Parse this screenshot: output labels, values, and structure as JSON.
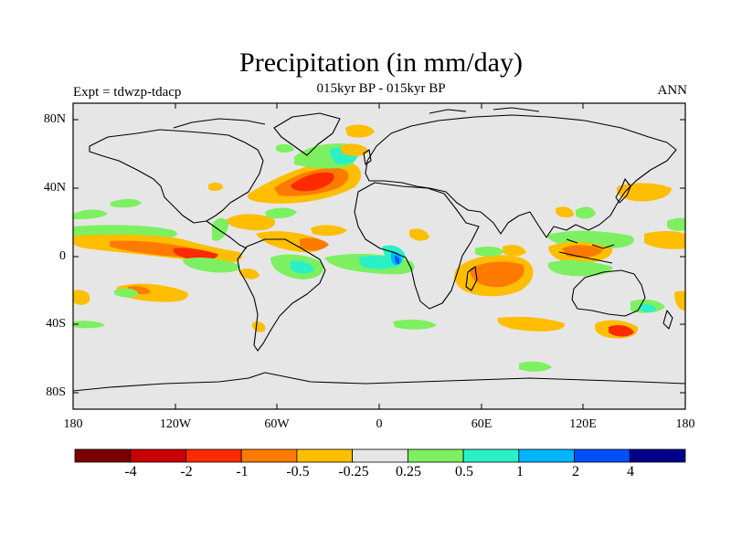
{
  "header": {
    "title": "Precipitation (in mm/day)",
    "subtitle": "015kyr BP - 015kyr BP",
    "experiment": "Expt = tdwzp-tdacp",
    "season": "ANN"
  },
  "map": {
    "projection": "cylindrical equidistant",
    "background_color": "#e6e6e6",
    "lat_ticks": [
      "80N",
      "40N",
      "0",
      "40S",
      "80S"
    ],
    "lon_ticks": [
      "180",
      "120W",
      "60W",
      "0",
      "60E",
      "120E",
      "180"
    ]
  },
  "colorbar": {
    "colors": [
      "#7a0000",
      "#c80000",
      "#ff2a00",
      "#ff7a00",
      "#ffbe00",
      "#e6e6e6",
      "#7cf060",
      "#2af0c8",
      "#00b4ff",
      "#0050ff",
      "#00008c"
    ],
    "labels": [
      "-4",
      "-2",
      "-1",
      "-0.5",
      "-0.25",
      "0.25",
      "0.5",
      "1",
      "2",
      "4"
    ]
  }
}
